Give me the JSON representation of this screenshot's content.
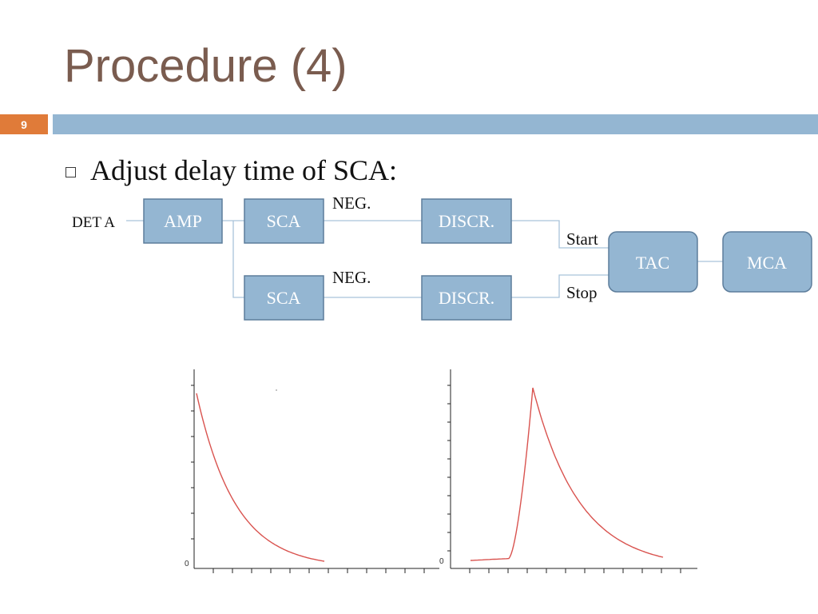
{
  "slide": {
    "title": "Procedure (4)",
    "number": "9",
    "bullet": "Adjust delay time of SCA:"
  },
  "colors": {
    "title": "#7a5c4f",
    "accent_orange": "#e07b39",
    "accent_blue": "#94b6d2",
    "block_fill": "#94b6d2",
    "block_border": "#5d7d9b",
    "curve": "#d9534f"
  },
  "diagram": {
    "input_label": "DET A",
    "blocks": {
      "amp": "AMP",
      "sca_top": "SCA",
      "discr_top": "DISCR.",
      "sca_bottom": "SCA",
      "discr_bottom": "DISCR.",
      "tac": "TAC",
      "mca": "MCA"
    },
    "labels": {
      "neg_top": "NEG.",
      "neg_bottom": "NEG.",
      "start": "Start",
      "stop": "Stop"
    }
  },
  "plots": {
    "left": {
      "zero_label": "0",
      "shape": "exponential-decay"
    },
    "right": {
      "zero_label": "0",
      "shape": "peak-with-decay"
    }
  }
}
